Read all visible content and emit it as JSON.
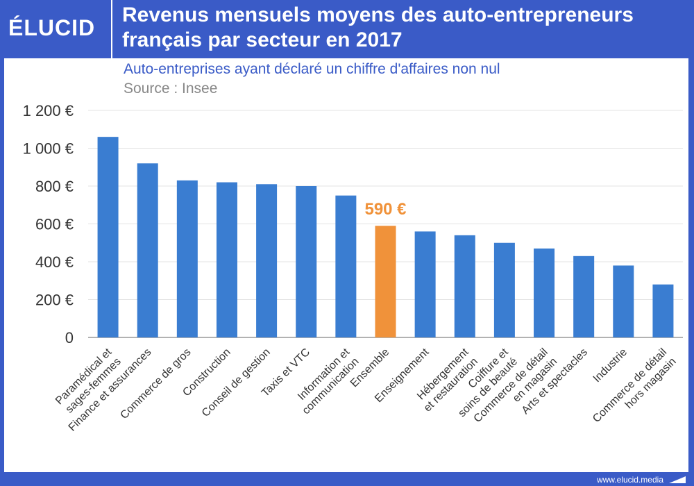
{
  "logo": "ÉLUCID",
  "title": "Revenus mensuels moyens des auto-entrepreneurs\nfrançais par secteur en 2017",
  "subtitle": "Auto-entreprises ayant déclaré un chiffre d'affaires non nul",
  "source": "Source : Insee",
  "footer": "www.elucid.media",
  "colors": {
    "brand": "#3a5bc7",
    "bar": "#3a7dd1",
    "highlight": "#f0923a"
  },
  "chart_data": {
    "type": "bar",
    "categories": [
      "Paramédical et\nsages-femmes",
      "Finance et assurances",
      "Commerce de gros",
      "Construction",
      "Conseil de gestion",
      "Taxis et VTC",
      "Information et\ncommunication",
      "Ensemble",
      "Enseignement",
      "Hébergement\net restauration",
      "Coiffure et\nsoins de beauté",
      "Commerce de détail\nen magasin",
      "Arts et spectacles",
      "Industrie",
      "Commerce de détail\nhors magasin"
    ],
    "values": [
      1060,
      920,
      830,
      820,
      810,
      800,
      750,
      590,
      560,
      540,
      500,
      470,
      430,
      380,
      280
    ],
    "highlight_index": 7,
    "annotation": "590 €",
    "yticks": [
      "0",
      "200 €",
      "400 €",
      "600 €",
      "800 €",
      "1 000 €",
      "1 200 €"
    ],
    "ylim": [
      0,
      1200
    ],
    "grid": true
  }
}
